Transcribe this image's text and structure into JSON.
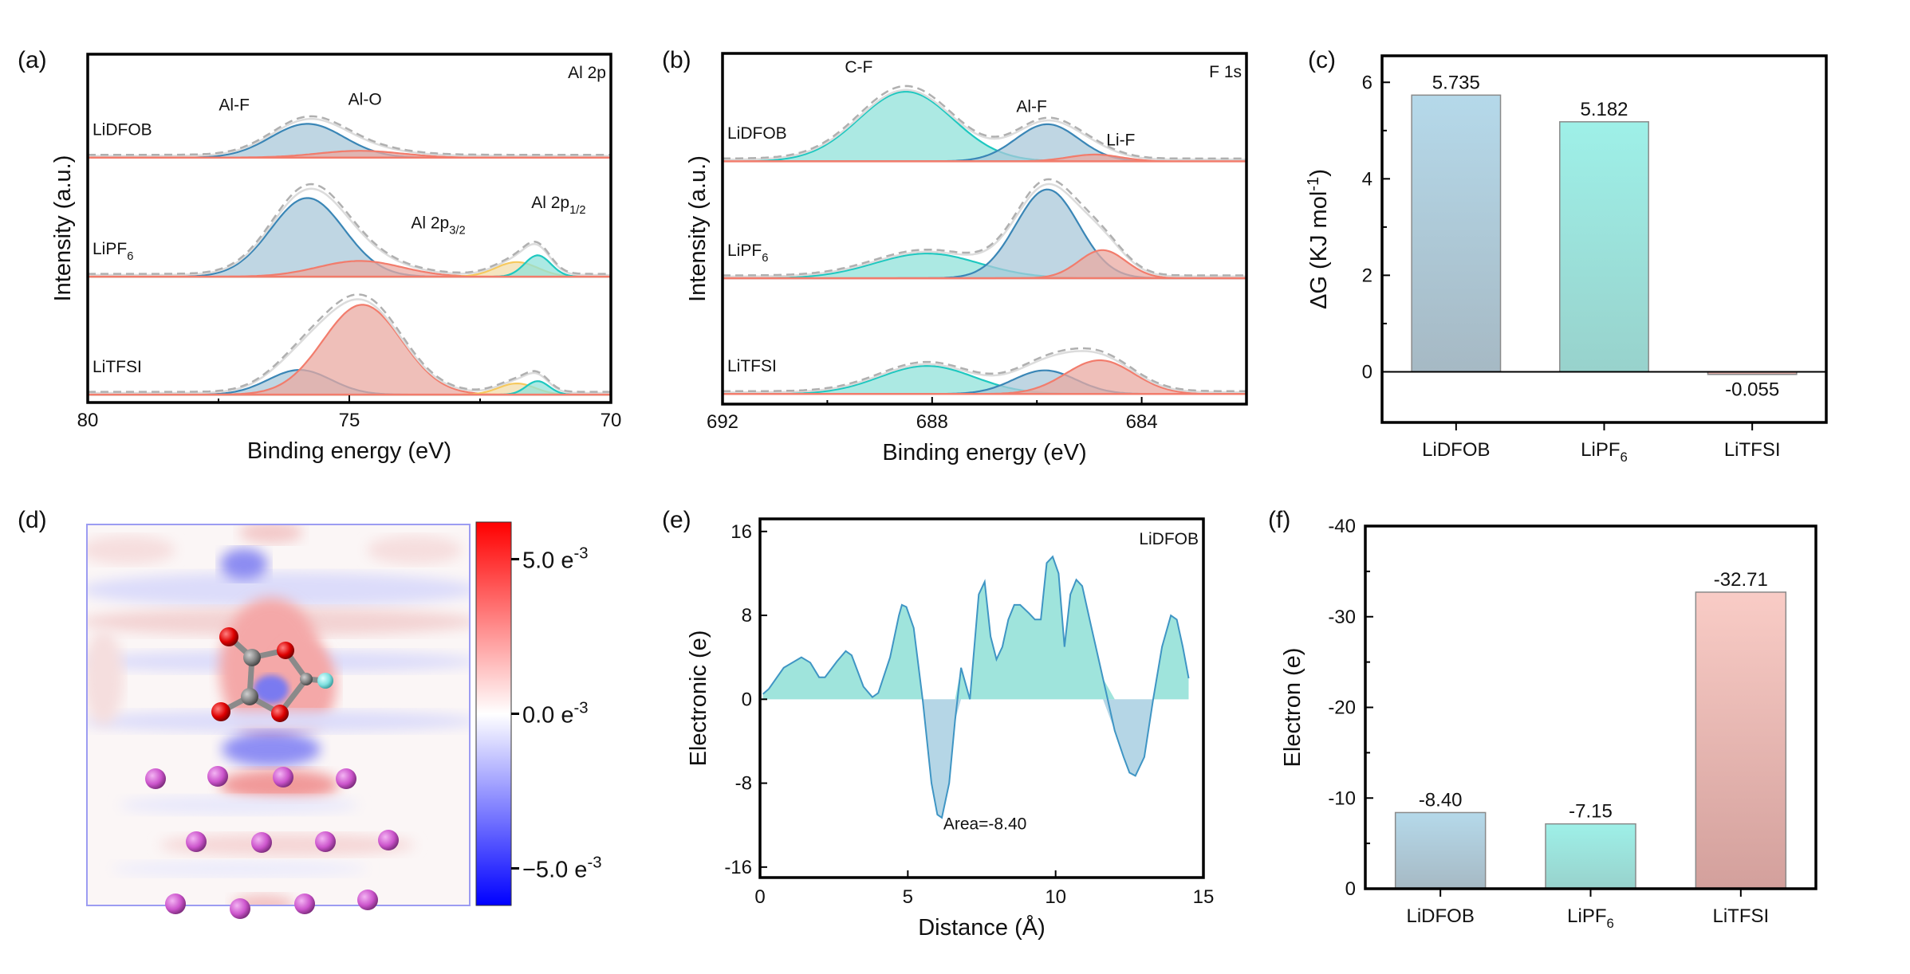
{
  "panel_labels": [
    "(a)",
    "(b)",
    "(c)",
    "(d)",
    "(e)",
    "(f)"
  ],
  "chart_data": [
    {
      "id": "a",
      "type": "area",
      "title": "Al 2p",
      "xlabel": "Binding energy (eV)",
      "ylabel": "Intensity (a.u.)",
      "xlim": [
        80,
        70
      ],
      "xticks": [
        80,
        75,
        70
      ],
      "ylim": [
        0,
        3.1
      ],
      "peak_labels": [
        {
          "text": "Al-F",
          "x": 77.2,
          "y": 2.6
        },
        {
          "text": "Al-O",
          "x": 74.7,
          "y": 2.65
        },
        {
          "text": "Al 2p",
          "sub": "3/2",
          "x": 73.3,
          "y": 1.55
        },
        {
          "text": "Al 2p",
          "sub": "1/2",
          "x": 71.0,
          "y": 1.73
        }
      ],
      "series": [
        {
          "name": "LiDFOB",
          "offset": 2.18,
          "peaks": [
            {
              "component": "Al-F",
              "center": 75.8,
              "amp": 0.3,
              "sigma": 0.7
            },
            {
              "component": "Al-O",
              "center": 74.8,
              "amp": 0.06,
              "sigma": 0.8
            }
          ]
        },
        {
          "name": "LiPF",
          "sub": "6",
          "offset": 1.12,
          "peaks": [
            {
              "component": "Al-F",
              "center": 75.8,
              "amp": 0.7,
              "sigma": 0.7
            },
            {
              "component": "Al-O",
              "center": 74.8,
              "amp": 0.14,
              "sigma": 0.8
            },
            {
              "component": "Al 2p3/2",
              "center": 71.8,
              "amp": 0.13,
              "sigma": 0.4
            },
            {
              "component": "Al 2p1/2",
              "center": 71.4,
              "amp": 0.19,
              "sigma": 0.25
            }
          ]
        },
        {
          "name": "LiTFSI",
          "offset": 0.07,
          "peaks": [
            {
              "component": "Al-F",
              "center": 75.95,
              "amp": 0.22,
              "sigma": 0.6
            },
            {
              "component": "Al-O",
              "center": 74.75,
              "amp": 0.8,
              "sigma": 0.75
            },
            {
              "component": "Al 2p3/2",
              "center": 71.8,
              "amp": 0.1,
              "sigma": 0.35
            },
            {
              "component": "Al 2p1/2",
              "center": 71.4,
              "amp": 0.12,
              "sigma": 0.22
            }
          ]
        }
      ]
    },
    {
      "id": "b",
      "type": "area",
      "title": "F 1s",
      "xlabel": "Binding energy (eV)",
      "ylabel": "Intensity (a.u.)",
      "xlim": [
        692,
        682
      ],
      "xticks": [
        692,
        688,
        684
      ],
      "ylim": [
        0,
        3.12
      ],
      "peak_labels": [
        {
          "text": "C-F",
          "x": 689.4,
          "y": 2.95
        },
        {
          "text": "Al-F",
          "x": 686.1,
          "y": 2.6
        },
        {
          "text": "Li-F",
          "x": 684.4,
          "y": 2.3
        }
      ],
      "series": [
        {
          "name": "LiDFOB",
          "offset": 2.16,
          "peaks": [
            {
              "component": "C-F",
              "center": 688.5,
              "amp": 0.62,
              "sigma": 0.9
            },
            {
              "component": "Al-F",
              "center": 685.8,
              "amp": 0.33,
              "sigma": 0.6
            },
            {
              "component": "Li-F",
              "center": 684.9,
              "amp": 0.06,
              "sigma": 0.5
            }
          ]
        },
        {
          "name": "LiPF",
          "sub": "6",
          "offset": 1.12,
          "peaks": [
            {
              "component": "C-F",
              "center": 688.1,
              "amp": 0.22,
              "sigma": 1.0
            },
            {
              "component": "Al-F",
              "center": 685.8,
              "amp": 0.79,
              "sigma": 0.6
            },
            {
              "component": "Li-F",
              "center": 684.75,
              "amp": 0.25,
              "sigma": 0.45
            }
          ]
        },
        {
          "name": "LiTFSI",
          "offset": 0.09,
          "peaks": [
            {
              "component": "C-F",
              "center": 688.1,
              "amp": 0.25,
              "sigma": 0.9
            },
            {
              "component": "Al-F",
              "center": 685.85,
              "amp": 0.21,
              "sigma": 0.6
            },
            {
              "component": "Li-F",
              "center": 684.8,
              "amp": 0.3,
              "sigma": 0.65
            }
          ]
        }
      ]
    },
    {
      "id": "c",
      "type": "bar",
      "ylabel": "ΔG (KJ mol",
      "ylabel_sup": "-1",
      "ylabel_end": ")",
      "ylim": [
        -1.05,
        6.55
      ],
      "yticks": [
        0,
        2,
        4,
        6
      ],
      "categories": [
        {
          "name": "LiDFOB"
        },
        {
          "name": "LiPF",
          "sub": "6"
        },
        {
          "name": "LiTFSI"
        }
      ],
      "values": [
        5.735,
        5.182,
        -0.055
      ],
      "value_labels": [
        "5.735",
        "5.182",
        "-0.055"
      ]
    },
    {
      "id": "d",
      "type": "heatmap",
      "colorbar": {
        "ticks": [
          {
            "value": 5.0,
            "label": "5.0 e",
            "sup": "-3"
          },
          {
            "value": 0.0,
            "label": "0.0 e",
            "sup": "-3"
          },
          {
            "value": -5.0,
            "label": "−5.0 e",
            "sup": "-3"
          }
        ],
        "range": [
          -6.2,
          6.2
        ],
        "colors": [
          "#0000ff",
          "#ffffff",
          "#ff0000"
        ]
      }
    },
    {
      "id": "e",
      "type": "area",
      "title": "LiDFOB",
      "xlabel": "Distance (Å)",
      "ylabel": "Electronic (e)",
      "xlim": [
        0,
        15
      ],
      "ylim": [
        -17,
        17.2
      ],
      "xticks": [
        0,
        5,
        10,
        15
      ],
      "yticks": [
        16,
        8,
        0,
        -8,
        -16
      ],
      "annotation": "Area=-8.40",
      "x": [
        0.1,
        0.3,
        0.8,
        1.4,
        1.7,
        2.0,
        2.2,
        2.6,
        2.9,
        3.1,
        3.5,
        3.8,
        4.0,
        4.4,
        4.7,
        4.8,
        4.95,
        5.2,
        5.5,
        5.8,
        6.0,
        6.15,
        6.4,
        6.6,
        6.8,
        7.1,
        7.4,
        7.6,
        7.8,
        8.0,
        8.2,
        8.4,
        8.6,
        8.8,
        9.1,
        9.3,
        9.5,
        9.7,
        9.9,
        10.1,
        10.3,
        10.5,
        10.7,
        10.9,
        11.2,
        11.6,
        12.0,
        12.3,
        12.5,
        12.7,
        13.0,
        13.3,
        13.6,
        13.9,
        14.1,
        14.3,
        14.5
      ],
      "y": [
        0.5,
        1,
        3,
        4,
        3.5,
        2.1,
        2.1,
        3.6,
        4.6,
        4.2,
        1.2,
        0.2,
        0.6,
        4,
        8,
        9,
        8.8,
        6.8,
        0,
        -8,
        -11,
        -11.3,
        -8,
        -2,
        3,
        0,
        10,
        11.2,
        6,
        3.8,
        5,
        7.6,
        9,
        9,
        8.2,
        7.6,
        7.6,
        13,
        13.6,
        12,
        5,
        10,
        11.4,
        10.8,
        7,
        2,
        -3,
        -5.5,
        -7,
        -7.3,
        -5.5,
        0,
        5,
        8,
        7.6,
        5,
        2
      ]
    },
    {
      "id": "f",
      "type": "bar",
      "ylabel": "Electron (e)",
      "ylim": [
        0,
        -40
      ],
      "yticks": [
        0,
        -10,
        -20,
        -30,
        -40
      ],
      "categories": [
        {
          "name": "LiDFOB"
        },
        {
          "name": "LiPF",
          "sub": "6"
        },
        {
          "name": "LiTFSI"
        }
      ],
      "values": [
        -8.4,
        -7.15,
        -32.71
      ],
      "value_labels": [
        "-8.40",
        "-7.15",
        "-32.71"
      ]
    }
  ],
  "colors": {
    "blue_fill": "#a9c8da",
    "blue_line": "#3a86b6",
    "red_fill": "#eaa9a1",
    "red_line": "#f27c6c",
    "teal_fill": "#90e2da",
    "teal_line": "#1ec8c0",
    "yellow_fill": "#f1dcaa",
    "yellow_line": "#f6c95e",
    "envelope": "#b0b0b0"
  }
}
